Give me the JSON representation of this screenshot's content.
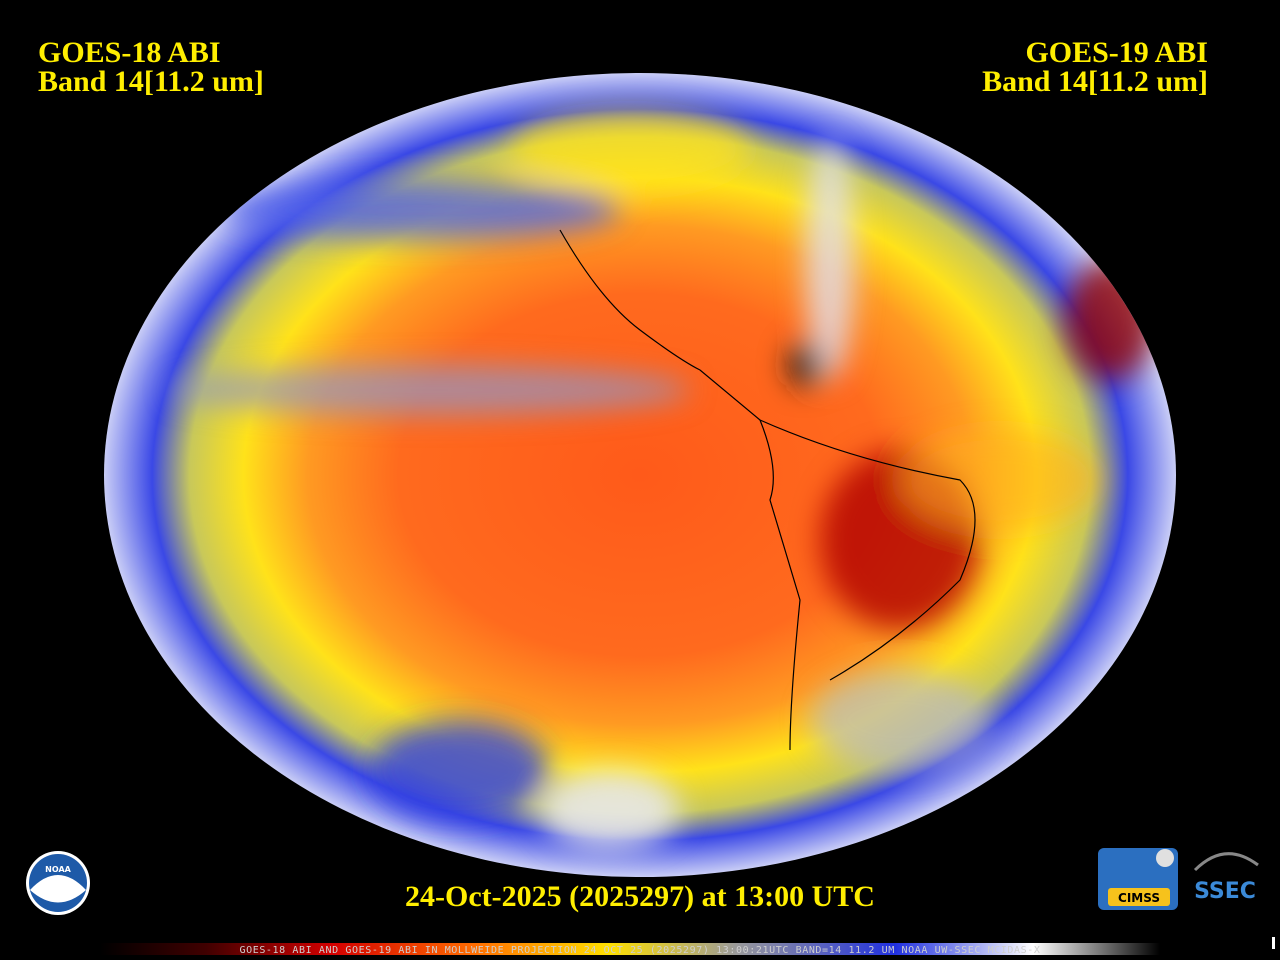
{
  "header": {
    "left_title": "GOES-18 ABI",
    "left_band": "Band 14[11.2 um]",
    "right_title": "GOES-19 ABI",
    "right_band": "Band 14[11.2 um]"
  },
  "footer": {
    "timestamp": "24-Oct-2025 (2025297) at 13:00 UTC",
    "caption": "GOES-18 ABI AND GOES-19 ABI IN MOLLWEIDE PROJECTION 24 OCT 25 (2025297) 13:00:21UTC BAND=14 11.2 UM NOAA UW-SSEC MCIDAS-X"
  },
  "logos": {
    "noaa": "NOAA",
    "cimss": "CIMSS",
    "ssec": "SSEC"
  }
}
